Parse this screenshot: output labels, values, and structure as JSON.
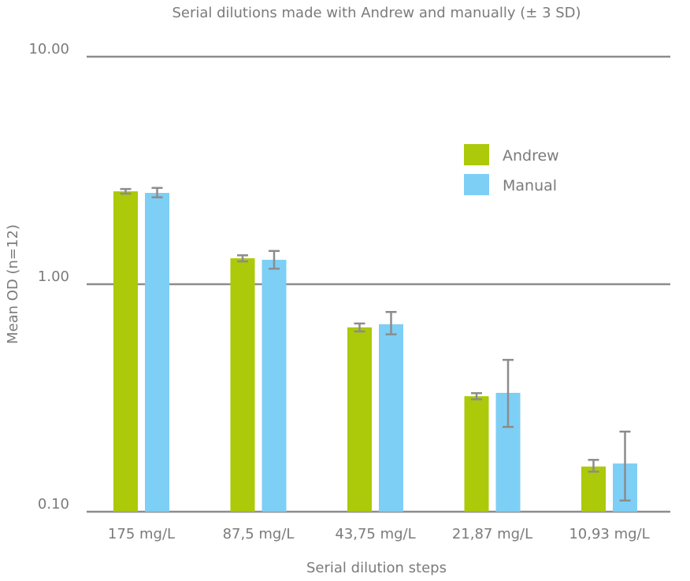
{
  "chart_data": {
    "type": "bar",
    "title": "Serial dilutions made with Andrew and manually (± 3 SD)",
    "xlabel": "Serial dilution steps",
    "ylabel": "Mean OD (n=12)",
    "yscale": "log",
    "ylim": [
      0.1,
      10
    ],
    "yticks": [
      {
        "value": 10,
        "label": "10.00"
      },
      {
        "value": 1,
        "label": "1.00"
      },
      {
        "value": 0.1,
        "label": "0.10"
      }
    ],
    "grid": true,
    "legend_position": "top-right",
    "categories": [
      "175 mg/L",
      "87,5 mg/L",
      "43,75 mg/L",
      "21,87 mg/L",
      "10,93 mg/L"
    ],
    "series": [
      {
        "name": "Andrew",
        "color": "#acc90a",
        "values": [
          2.56,
          1.3,
          0.646,
          0.322,
          0.158
        ],
        "err_low": [
          2.5,
          1.26,
          0.62,
          0.312,
          0.15
        ],
        "err_high": [
          2.62,
          1.34,
          0.672,
          0.332,
          0.169
        ]
      },
      {
        "name": "Manual",
        "color": "#7dcff5",
        "values": [
          2.52,
          1.28,
          0.667,
          0.333,
          0.163
        ],
        "err_low": [
          2.41,
          1.17,
          0.602,
          0.236,
          0.112
        ],
        "err_high": [
          2.65,
          1.4,
          0.755,
          0.465,
          0.225
        ]
      }
    ]
  },
  "colors": {
    "axis": "#8c8c8c",
    "gridline": "#8c8c8c",
    "errorbar": "#8c8c8c",
    "text": "#7b7b7b"
  }
}
